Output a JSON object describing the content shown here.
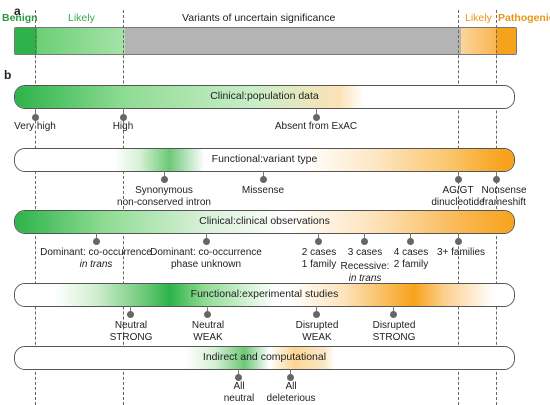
{
  "panel_a": {
    "letter": "a",
    "benign": "Benign",
    "likely_benign": "Likely",
    "vus": "Variants of uncertain significance",
    "likely_pathogenic": "Likely",
    "pathogenic": "Pathogenic",
    "colors": {
      "benign": "#2db34a",
      "likely_benign": "#8fdc93",
      "vus": "#b4b4b4",
      "likely_pathogenic": "#fbc97a",
      "pathogenic": "#f7a21b"
    }
  },
  "panel_b": {
    "letter": "b",
    "rows": [
      {
        "title": "Clinical:population data",
        "markers": [
          {
            "lines": [
              "Very high"
            ]
          },
          {
            "lines": [
              "High"
            ]
          },
          {
            "lines": [
              "Absent from ExAC"
            ]
          }
        ]
      },
      {
        "title": "Functional:variant type",
        "markers": [
          {
            "lines": [
              "Synonymous",
              "non-conserved intron"
            ]
          },
          {
            "lines": [
              "Missense"
            ]
          },
          {
            "lines": [
              "AG/GT",
              "dinucleotide"
            ]
          },
          {
            "lines": [
              "Nonsense",
              "frameshift"
            ]
          }
        ]
      },
      {
        "title": "Clinical:clinical observations",
        "markers": [
          {
            "lines": [
              "Dominant: co-occurrence",
              "in trans"
            ]
          },
          {
            "lines": [
              "Dominant: co-occurrence",
              "phase unknown"
            ]
          },
          {
            "lines": [
              "2 cases",
              "1 family"
            ]
          },
          {
            "lines": [
              "3 cases"
            ]
          },
          {
            "lines": [
              "Recessive:",
              "in trans"
            ]
          },
          {
            "lines": [
              "4 cases",
              "2 family"
            ]
          },
          {
            "lines": [
              "3+ families"
            ]
          }
        ]
      },
      {
        "title": "Functional:experimental studies",
        "markers": [
          {
            "lines": [
              "Neutral",
              "STRONG"
            ]
          },
          {
            "lines": [
              "Neutral",
              "WEAK"
            ]
          },
          {
            "lines": [
              "Disrupted",
              "WEAK"
            ]
          },
          {
            "lines": [
              "Disrupted",
              "STRONG"
            ]
          }
        ]
      },
      {
        "title": "Indirect and computational",
        "markers": [
          {
            "lines": [
              "All",
              "neutral"
            ]
          },
          {
            "lines": [
              "All",
              "deleterious"
            ]
          }
        ]
      }
    ]
  }
}
